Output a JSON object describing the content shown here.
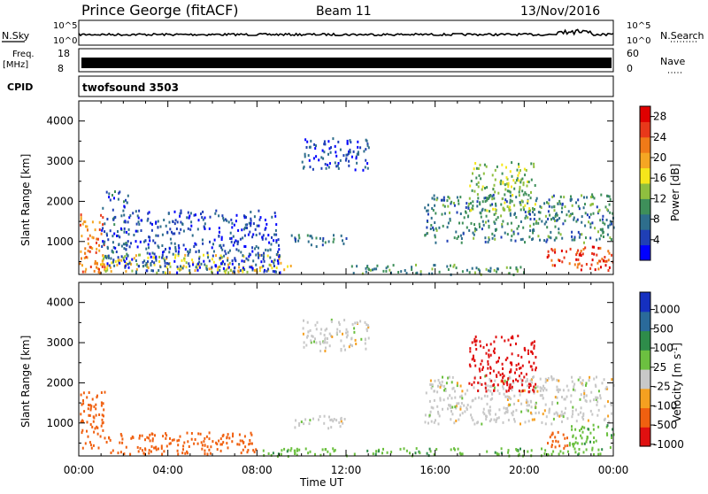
{
  "header": {
    "station": "Prince George (fitACF)",
    "beam": "Beam 11",
    "date": "13/Nov/2016"
  },
  "strips": {
    "nsky_label": "N.Sky",
    "nsearch_label": "N.Search",
    "freq_label_1": "Freq.",
    "freq_label_2": "[MHz]",
    "nave_label": "Nave",
    "cpid_label": "CPID",
    "cpid_value": "twofsound 3503",
    "noise_ticks_left": [
      "10^5",
      "10^0"
    ],
    "noise_ticks_right": [
      "10^5",
      "10^0"
    ],
    "freq_ticks": [
      "18",
      "8"
    ],
    "nave_ticks": [
      "60",
      "0"
    ]
  },
  "chart_data": [
    {
      "type": "heatmap",
      "panel": "power",
      "ylabel": "Slant Range [km]",
      "xlabel": "Time UT",
      "xlim": [
        0,
        24
      ],
      "ylim": [
        180,
        4500
      ],
      "x_ticks": [
        "00:00",
        "04:00",
        "08:00",
        "12:00",
        "16:00",
        "20:00",
        "00:00"
      ],
      "y_ticks": [
        1000,
        2000,
        3000,
        4000
      ],
      "colorbar": {
        "label": "Power [dB]",
        "range": [
          0,
          30
        ],
        "tick_labels": [
          "4",
          "8",
          "12",
          "16",
          "20",
          "24",
          "28"
        ],
        "colors": [
          "#0000ff",
          "#1f3fb5",
          "#2e6e8c",
          "#3e8f5a",
          "#8fbf3f",
          "#f5e61b",
          "#f5a623",
          "#f07a18",
          "#e8381a",
          "#e00000"
        ]
      },
      "regions": [
        {
          "t": [
            0.0,
            1.2
          ],
          "r": [
            200,
            1700
          ],
          "power": 22
        },
        {
          "t": [
            1.0,
            9.5
          ],
          "r": [
            250,
            700
          ],
          "power": 17
        },
        {
          "t": [
            1.0,
            2.2
          ],
          "r": [
            400,
            2300
          ],
          "power": 6
        },
        {
          "t": [
            2.0,
            9.0
          ],
          "r": [
            250,
            1800
          ],
          "power": 5
        },
        {
          "t": [
            9.5,
            12.0
          ],
          "r": [
            900,
            1200
          ],
          "power": 8
        },
        {
          "t": [
            10.0,
            13.0
          ],
          "r": [
            2800,
            3600
          ],
          "power": 5
        },
        {
          "t": [
            12.0,
            20.0
          ],
          "r": [
            200,
            450
          ],
          "power": 10
        },
        {
          "t": [
            15.5,
            24.0
          ],
          "r": [
            1000,
            2200
          ],
          "power": 9
        },
        {
          "t": [
            17.5,
            20.5
          ],
          "r": [
            1800,
            3000
          ],
          "power": 13
        },
        {
          "t": [
            21.0,
            24.0
          ],
          "r": [
            300,
            900
          ],
          "power": 26
        }
      ]
    },
    {
      "type": "heatmap",
      "panel": "velocity",
      "ylabel": "Slant Range [km]",
      "xlabel": "Time UT",
      "xlim": [
        0,
        24
      ],
      "ylim": [
        180,
        4500
      ],
      "x_ticks": [
        "00:00",
        "04:00",
        "08:00",
        "12:00",
        "16:00",
        "20:00",
        "00:00"
      ],
      "y_ticks": [
        1000,
        2000,
        3000,
        4000
      ],
      "colorbar": {
        "label": "Velocity [m s",
        "unit_exponent": "-1",
        "unit_suffix": "]",
        "tick_labels": [
          "1000",
          "500",
          "100",
          "25",
          "-25",
          "-100",
          "-500",
          "-1000"
        ],
        "colors": [
          "#1530c0",
          "#2a6a9a",
          "#2e8c4a",
          "#6cc040",
          "#c8c8c8",
          "#f5a020",
          "#f06010",
          "#e01010"
        ]
      },
      "regions": [
        {
          "t": [
            0.0,
            1.2
          ],
          "r": [
            400,
            1800
          ],
          "velocity": -200
        },
        {
          "t": [
            1.0,
            8.0
          ],
          "r": [
            250,
            800
          ],
          "velocity": -150
        },
        {
          "t": [
            8.0,
            24.0
          ],
          "r": [
            200,
            400
          ],
          "velocity": 80
        },
        {
          "t": [
            9.5,
            12.0
          ],
          "r": [
            900,
            1200
          ],
          "velocity": 0
        },
        {
          "t": [
            10.0,
            13.0
          ],
          "r": [
            2800,
            3600
          ],
          "velocity": 0
        },
        {
          "t": [
            15.5,
            24.0
          ],
          "r": [
            1000,
            2200
          ],
          "velocity": 0
        },
        {
          "t": [
            17.5,
            20.5
          ],
          "r": [
            1800,
            3200
          ],
          "velocity": -700
        },
        {
          "t": [
            21.0,
            22.0
          ],
          "r": [
            400,
            800
          ],
          "velocity": -200
        },
        {
          "t": [
            22.0,
            24.0
          ],
          "r": [
            400,
            1000
          ],
          "velocity": 80
        }
      ]
    }
  ]
}
